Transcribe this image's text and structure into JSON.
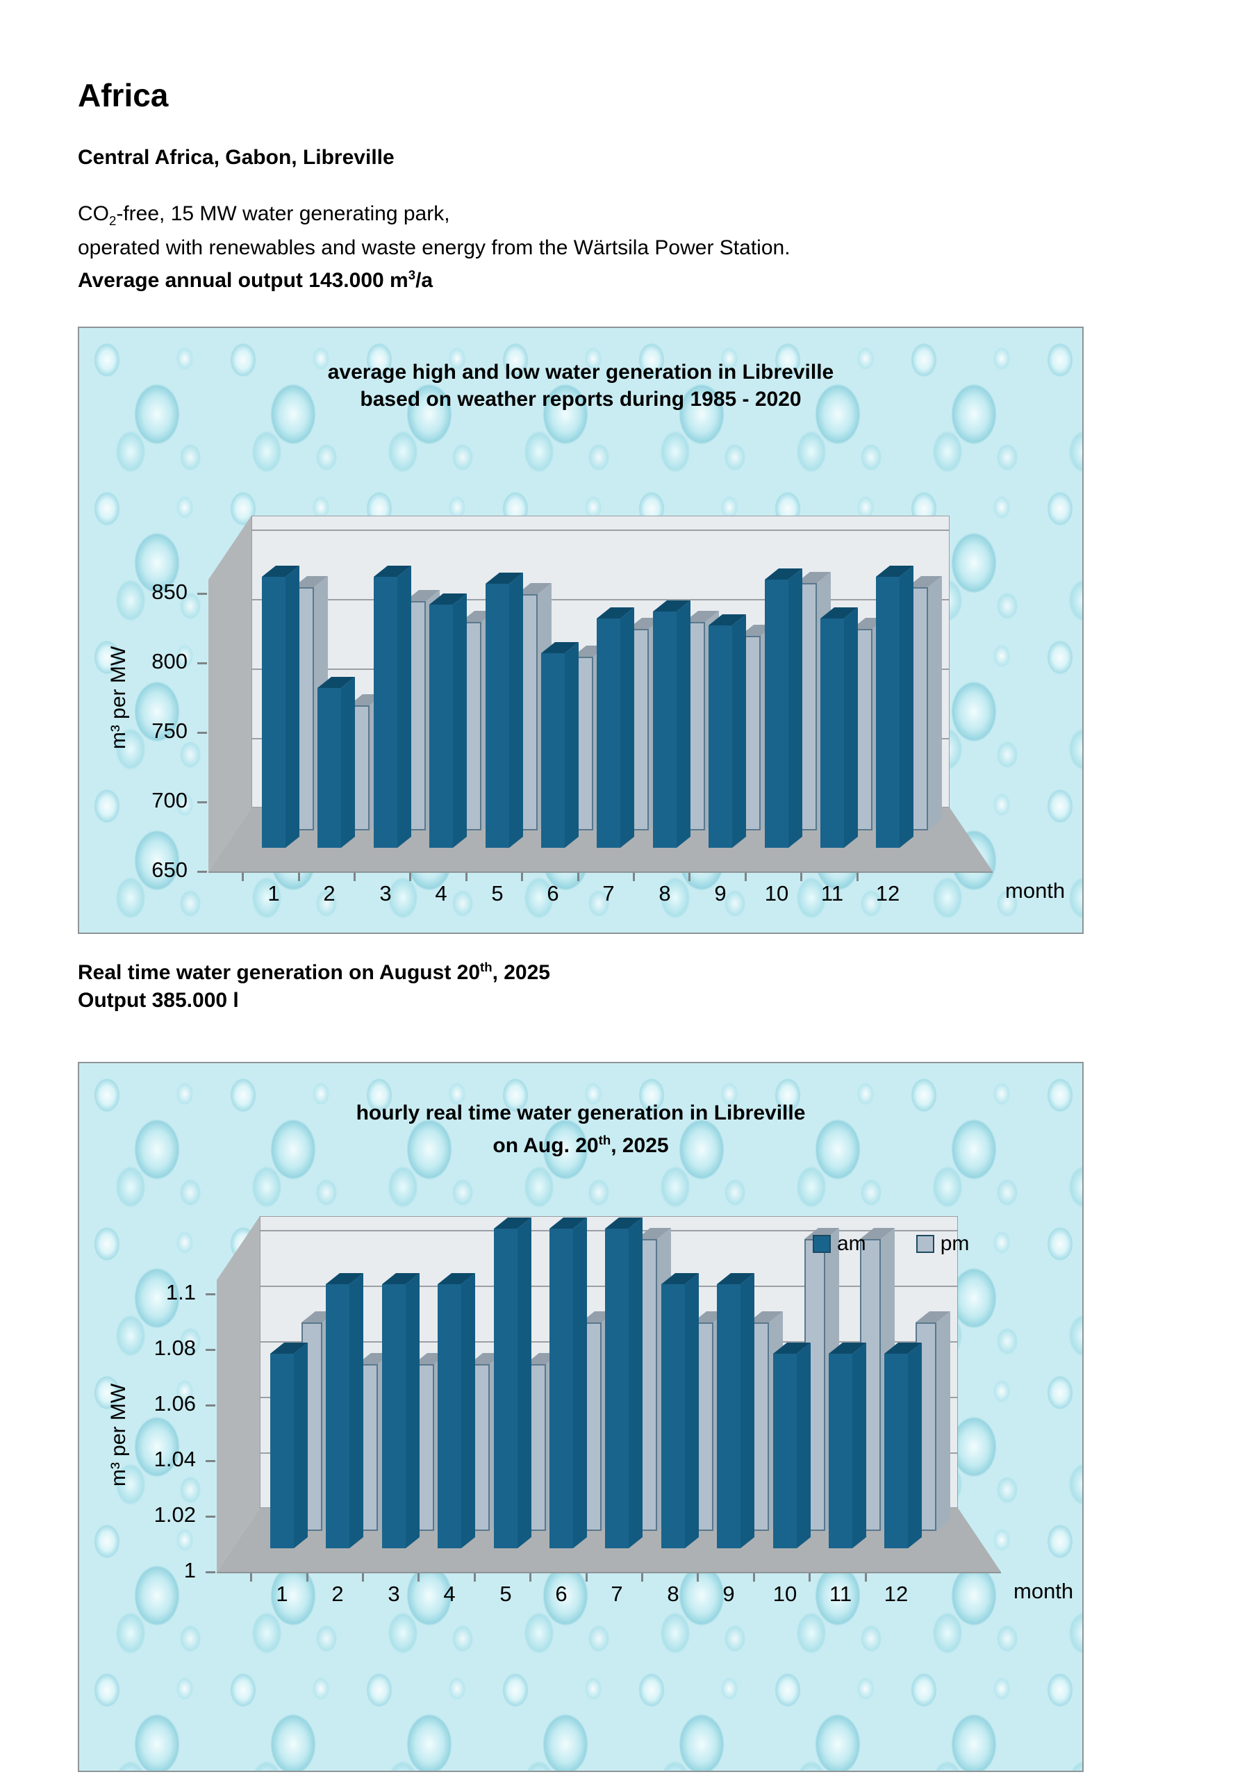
{
  "page": {
    "background": "#ffffff",
    "panel_background": "#c9ecf2",
    "title": "Africa",
    "subtitle": "Central Africa, Gabon, Libreville",
    "intro": {
      "line1_pre": "CO",
      "line1_sub": "2",
      "line1_post": "-free, 15 MW water generating park,",
      "line2": "operated with renewables and waste energy from the Wärtsila Power Station.",
      "line3_pre": "Average annual output 143.000 m",
      "line3_sup": "3",
      "line3_post": "/a"
    },
    "section2": {
      "line1_pre": "Real time water generation on August 20",
      "line1_sup": "th",
      "line1_post": ", 2025",
      "line2": "Output 385.000 l"
    }
  },
  "chart_data": [
    {
      "type": "bar",
      "title_line1": "average high and low water generation in Libreville",
      "title_line2": "based on weather reports during 1985 - 2020",
      "xlabel": "month",
      "ylabel": "m³ per MW",
      "categories": [
        1,
        2,
        3,
        4,
        5,
        6,
        7,
        8,
        9,
        10,
        11,
        12
      ],
      "series": [
        {
          "name": "high",
          "color": "#19648c",
          "values": [
            845,
            765,
            845,
            825,
            840,
            790,
            815,
            820,
            810,
            843,
            815,
            845
          ]
        },
        {
          "name": "low",
          "color": "#b1bfcc",
          "values": [
            825,
            740,
            815,
            800,
            820,
            775,
            795,
            800,
            790,
            828,
            795,
            825
          ]
        }
      ],
      "ylim": [
        650,
        850
      ],
      "yticks": [
        "850",
        "800",
        "750",
        "700",
        "650"
      ],
      "grid": true,
      "legend": null
    },
    {
      "type": "bar",
      "title_line1": "hourly real time water generation in Libreville",
      "title_line2_pre": "on Aug. 20",
      "title_line2_sup": "th",
      "title_line2_post": ", 2025",
      "xlabel": "month",
      "ylabel": "m³ per MW",
      "categories": [
        1,
        2,
        3,
        4,
        5,
        6,
        7,
        8,
        9,
        10,
        11,
        12
      ],
      "series": [
        {
          "name": "am",
          "color": "#19648c",
          "values": [
            1.07,
            1.095,
            1.095,
            1.095,
            1.115,
            1.115,
            1.115,
            1.095,
            1.095,
            1.07,
            1.07,
            1.07
          ]
        },
        {
          "name": "pm",
          "color": "#b1bfcc",
          "values": [
            1.075,
            1.06,
            1.06,
            1.06,
            1.06,
            1.075,
            1.105,
            1.075,
            1.075,
            1.105,
            1.105,
            1.075
          ]
        }
      ],
      "ylim": [
        1,
        1.1
      ],
      "yticks": [
        "1.1",
        "1.08",
        "1.06",
        "1.04",
        "1.02",
        "1"
      ],
      "grid": true,
      "legend": {
        "position": "top-right",
        "items": [
          "am",
          "pm"
        ]
      }
    }
  ]
}
